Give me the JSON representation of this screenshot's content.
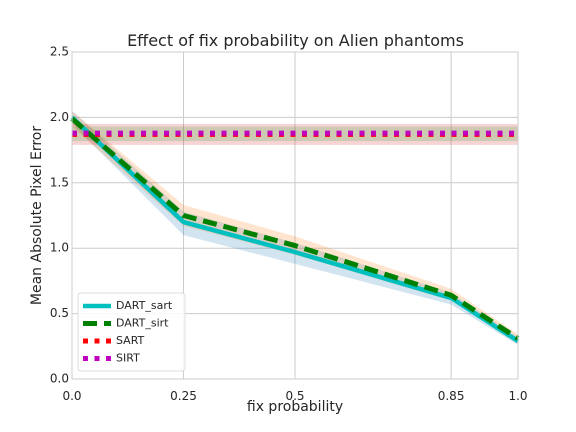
{
  "chart_data": {
    "type": "line",
    "title": "Effect of fix probability on Alien phantoms",
    "xlabel": "fix probability",
    "ylabel": "Mean Absolute Pixel Error",
    "x": [
      0.0,
      0.25,
      0.5,
      0.85,
      1.0
    ],
    "x_tick_labels": [
      "0.0",
      "0.25",
      "0.5",
      "0.85",
      "1.0"
    ],
    "y_ticks": [
      0.0,
      0.5,
      1.0,
      1.5,
      2.0,
      2.5
    ],
    "y_tick_labels": [
      "0.0",
      "0.5",
      "1.0",
      "1.5",
      "2.0",
      "2.5"
    ],
    "ylim": [
      0.0,
      2.5
    ],
    "grid": true,
    "legend_position": "lower-left",
    "series": [
      {
        "name": "DART_sart",
        "color": "#00bfbf",
        "style": "solid",
        "values": [
          2.0,
          1.2,
          0.97,
          0.62,
          0.29
        ],
        "band_lower": [
          1.95,
          1.1,
          0.88,
          0.57,
          0.26
        ],
        "band_upper": [
          2.05,
          1.28,
          1.04,
          0.66,
          0.32
        ],
        "band_color": "#1f77b4"
      },
      {
        "name": "DART_sirt",
        "color": "#008000",
        "style": "dashed",
        "values": [
          1.99,
          1.25,
          1.02,
          0.64,
          0.31
        ],
        "band_lower": [
          1.93,
          1.17,
          0.95,
          0.6,
          0.28
        ],
        "band_upper": [
          2.05,
          1.33,
          1.09,
          0.69,
          0.34
        ],
        "band_color": "#ff7f0e"
      },
      {
        "name": "SART",
        "color": "#ff0000",
        "style": "dotted",
        "values": [
          1.87,
          1.87,
          1.87,
          1.87,
          1.87
        ],
        "band_lower": [
          1.79,
          1.79,
          1.79,
          1.79,
          1.79
        ],
        "band_upper": [
          1.95,
          1.95,
          1.95,
          1.95,
          1.95
        ],
        "band_color": "#d62728"
      },
      {
        "name": "SIRT",
        "color": "#bf00bf",
        "style": "dotted",
        "values": [
          1.88,
          1.88,
          1.88,
          1.88,
          1.88
        ],
        "band_lower": [
          1.82,
          1.82,
          1.82,
          1.82,
          1.82
        ],
        "band_upper": [
          1.93,
          1.93,
          1.93,
          1.93,
          1.93
        ],
        "band_color": "#2ca02c"
      }
    ]
  }
}
